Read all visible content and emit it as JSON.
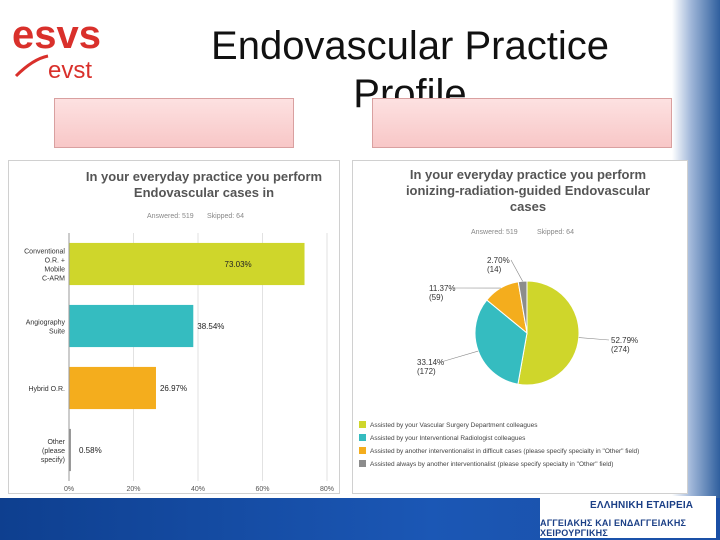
{
  "slide": {
    "title_line1": "Endovascular Practice",
    "title_line2": "Profile",
    "logo_top": "esvs",
    "logo_bottom": "evst"
  },
  "footer": {
    "line1": "ΕΛΛΗΝΙΚΗ ΕΤΑΙΡΕΙΑ",
    "line2": "ΑΓΓΕΙΑΚΗΣ ΚΑΙ ΕΝΔΑΓΓΕΙΑΚΗΣ ΧΕΙΡΟΥΡΓΙΚΗΣ"
  },
  "chart_data": [
    {
      "type": "bar",
      "orientation": "horizontal",
      "title_line1": "In your everyday practice you perform",
      "title_line2": "Endovascular cases in",
      "answered": "Answered: 519",
      "skipped": "Skipped: 64",
      "categories": [
        [
          "Conventional",
          "O.R. +",
          "Mobile",
          "C-ARM"
        ],
        [
          "Angiography",
          "Suite"
        ],
        [
          "Hybrid O.R."
        ],
        [
          "Other",
          "(please",
          "specify)"
        ]
      ],
      "values": [
        73.03,
        38.54,
        26.97,
        0.58
      ],
      "value_labels": [
        "73.03%",
        "38.54%",
        "26.97%",
        "0.58%"
      ],
      "colors": [
        "#cfd62b",
        "#35bcc0",
        "#f4ad1d",
        "#8c8c8c"
      ],
      "xlim": [
        0,
        80
      ],
      "xticks": [
        "0%",
        "20%",
        "40%",
        "60%",
        "80%"
      ]
    },
    {
      "type": "pie",
      "title_line1": "In your everyday practice you perform",
      "title_line2": "ionizing-radiation-guided Endovascular",
      "title_line3": "cases",
      "answered": "Answered: 519",
      "skipped": "Skipped: 64",
      "slices": [
        {
          "label": "Assisted by your Vascular Surgery Department colleagues",
          "value": 52.79,
          "pct": "52.79%",
          "count": "(274)",
          "color": "#cfd62b"
        },
        {
          "label": "Assisted by your Interventional Radiologist colleagues",
          "value": 33.14,
          "pct": "33.14%",
          "count": "(172)",
          "color": "#35bcc0"
        },
        {
          "label": "Assisted by another interventionalist in difficult cases (please specify specialty in \"Other\" field)",
          "value": 11.37,
          "pct": "11.37%",
          "count": "(59)",
          "color": "#f4ad1d"
        },
        {
          "label": "Assisted always by another interventionalist (please specify specialty in \"Other\" field)",
          "value": 2.7,
          "pct": "2.70%",
          "count": "(14)",
          "color": "#8c8c8c"
        }
      ]
    }
  ]
}
